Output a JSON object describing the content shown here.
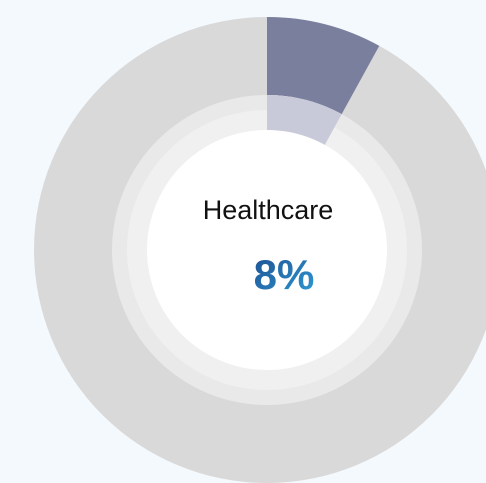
{
  "chart_data": {
    "type": "donut",
    "categories": [
      "Healthcare"
    ],
    "values": [
      8
    ],
    "value_labels": [
      "8%"
    ],
    "color": "#7b7f9e"
  }
}
